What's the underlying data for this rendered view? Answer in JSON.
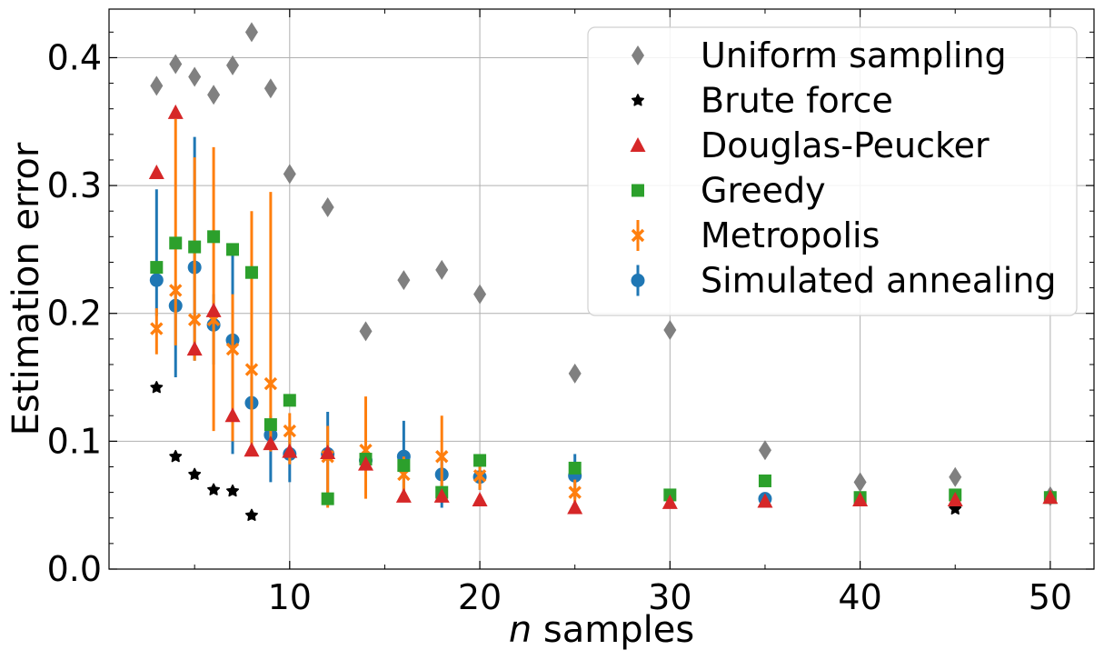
{
  "chart_data": {
    "type": "scatter",
    "xlabel_italic": "n",
    "xlabel_rest": " samples",
    "ylabel": "Estimation error",
    "xlim": [
      0.5,
      52.3
    ],
    "ylim": [
      0,
      0.438
    ],
    "xticks": [
      10,
      20,
      30,
      40,
      50
    ],
    "xtick_labels": [
      "10",
      "20",
      "30",
      "40",
      "50"
    ],
    "yticks": [
      0.0,
      0.1,
      0.2,
      0.3,
      0.4
    ],
    "ytick_labels": [
      "0.0",
      "0.1",
      "0.2",
      "0.3",
      "0.4"
    ],
    "x_minor_ticks": [
      5,
      15,
      25,
      35,
      45
    ],
    "y_minor_ticks": [
      0.02,
      0.04,
      0.06,
      0.08,
      0.12,
      0.14,
      0.16,
      0.18,
      0.22,
      0.24,
      0.26,
      0.28,
      0.32,
      0.34,
      0.36,
      0.38,
      0.42
    ],
    "grid": true,
    "legend_position": "top-right",
    "series": [
      {
        "name": "Uniform sampling",
        "marker": "diamond",
        "color": "#808080",
        "x": [
          3,
          4,
          5,
          6,
          7,
          8,
          9,
          10,
          12,
          14,
          16,
          18,
          20,
          25,
          30,
          35,
          40,
          45,
          50
        ],
        "y": [
          0.378,
          0.395,
          0.385,
          0.371,
          0.394,
          0.42,
          0.376,
          0.309,
          0.283,
          0.186,
          0.226,
          0.234,
          0.215,
          0.153,
          0.187,
          0.093,
          0.068,
          0.072,
          0.057
        ]
      },
      {
        "name": "Brute force",
        "marker": "star",
        "color": "#000000",
        "x": [
          3,
          4,
          5,
          6,
          7,
          8,
          45
        ],
        "y": [
          0.142,
          0.088,
          0.074,
          0.062,
          0.061,
          0.042,
          0.047
        ]
      },
      {
        "name": "Douglas-Peucker",
        "marker": "triangle",
        "color": "#d62728",
        "x": [
          3,
          4,
          5,
          6,
          7,
          8,
          9,
          10,
          12,
          14,
          16,
          18,
          20,
          25,
          30,
          35,
          40,
          45,
          50
        ],
        "y": [
          0.31,
          0.357,
          0.172,
          0.202,
          0.12,
          0.093,
          0.098,
          0.092,
          0.091,
          0.082,
          0.057,
          0.057,
          0.054,
          0.048,
          0.052,
          0.053,
          0.054,
          0.054,
          0.056
        ]
      },
      {
        "name": "Greedy",
        "marker": "square",
        "color": "#2ca02c",
        "x": [
          3,
          4,
          5,
          6,
          7,
          8,
          9,
          10,
          12,
          14,
          16,
          18,
          20,
          25,
          30,
          35,
          40,
          45,
          50
        ],
        "y": [
          0.236,
          0.255,
          0.252,
          0.26,
          0.25,
          0.232,
          0.113,
          0.132,
          0.055,
          0.086,
          0.081,
          0.06,
          0.085,
          0.079,
          0.058,
          0.069,
          0.056,
          0.058,
          0.056
        ]
      },
      {
        "name": "Metropolis",
        "marker": "x",
        "color": "#ff7f0e",
        "x": [
          3,
          4,
          5,
          6,
          7,
          8,
          9,
          10,
          12,
          14,
          16,
          18,
          20,
          25
        ],
        "y": [
          0.188,
          0.218,
          0.195,
          0.195,
          0.172,
          0.156,
          0.145,
          0.108,
          0.088,
          0.093,
          0.074,
          0.088,
          0.073,
          0.06
        ],
        "err_low": [
          0.168,
          0.175,
          0.163,
          0.108,
          0.1,
          0.09,
          0.092,
          0.082,
          0.048,
          0.055,
          0.06,
          0.055,
          0.062,
          0.05
        ],
        "err_high": [
          0.204,
          0.352,
          0.322,
          0.33,
          0.215,
          0.28,
          0.295,
          0.122,
          0.112,
          0.135,
          0.088,
          0.12,
          0.083,
          0.07
        ]
      },
      {
        "name": "Simulated annealing",
        "marker": "circle",
        "color": "#1f77b4",
        "x": [
          3,
          4,
          5,
          6,
          7,
          8,
          9,
          10,
          12,
          14,
          16,
          18,
          20,
          25,
          35
        ],
        "y": [
          0.226,
          0.206,
          0.236,
          0.191,
          0.179,
          0.13,
          0.105,
          0.09,
          0.09,
          0.085,
          0.088,
          0.074,
          0.072,
          0.073,
          0.055
        ],
        "err_low": [
          0.198,
          0.15,
          0.163,
          0.16,
          0.09,
          0.1,
          0.068,
          0.068,
          0.052,
          0.058,
          0.06,
          0.048,
          0.062,
          0.055,
          0.05
        ],
        "err_high": [
          0.297,
          0.222,
          0.338,
          0.215,
          0.252,
          0.15,
          0.12,
          0.112,
          0.123,
          0.1,
          0.116,
          0.09,
          0.082,
          0.09,
          0.06
        ]
      }
    ]
  }
}
